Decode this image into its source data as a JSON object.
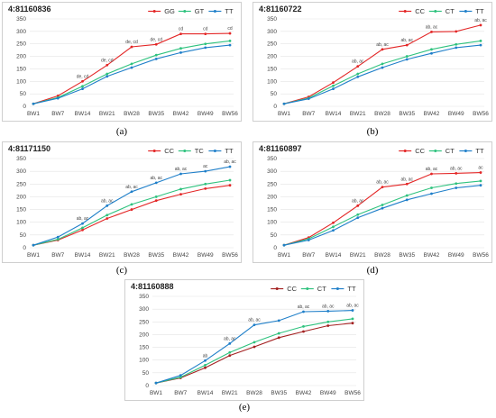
{
  "chart_data": [
    {
      "type": "line",
      "title": "4:81160836",
      "caption": "(a)",
      "categories": [
        "BW1",
        "BW7",
        "BW14",
        "BW21",
        "BW28",
        "BW35",
        "BW42",
        "BW49",
        "BW56"
      ],
      "ylim": [
        0,
        350
      ],
      "yticks": [
        0,
        50,
        100,
        150,
        200,
        250,
        300,
        350
      ],
      "grid": true,
      "legend": "top-right",
      "series": [
        {
          "name": "GG",
          "color": "#e32626",
          "values": [
            10,
            42,
            100,
            165,
            238,
            248,
            290,
            290,
            292
          ]
        },
        {
          "name": "GT",
          "color": "#2ec27e",
          "values": [
            10,
            35,
            80,
            130,
            170,
            205,
            232,
            250,
            262
          ]
        },
        {
          "name": "TT",
          "color": "#1f7fc9",
          "values": [
            10,
            32,
            70,
            120,
            155,
            190,
            215,
            235,
            245
          ]
        }
      ],
      "annotations": [
        "",
        "",
        "de, cd",
        "de, cd",
        "de, cd",
        "de, cd",
        "cd",
        "cd",
        "cd"
      ]
    },
    {
      "type": "line",
      "title": "4:81160722",
      "caption": "(b)",
      "categories": [
        "BW1",
        "BW7",
        "BW14",
        "BW21",
        "BW28",
        "BW35",
        "BW42",
        "BW49",
        "BW56"
      ],
      "ylim": [
        0,
        350
      ],
      "yticks": [
        0,
        50,
        100,
        150,
        200,
        250,
        300,
        350
      ],
      "grid": true,
      "legend": "top-right",
      "series": [
        {
          "name": "CC",
          "color": "#e32626",
          "values": [
            10,
            38,
            95,
            160,
            228,
            245,
            298,
            300,
            325
          ]
        },
        {
          "name": "CT",
          "color": "#2ec27e",
          "values": [
            10,
            33,
            82,
            130,
            170,
            200,
            228,
            248,
            262
          ]
        },
        {
          "name": "TT",
          "color": "#1f7fc9",
          "values": [
            10,
            30,
            70,
            118,
            155,
            188,
            212,
            235,
            245
          ]
        }
      ],
      "annotations": [
        "",
        "",
        "",
        "ab, ac",
        "ab, ac",
        "ab, ac",
        "ab, ac",
        "",
        "ab, ac"
      ]
    },
    {
      "type": "line",
      "title": "4:81171150",
      "caption": "(c)",
      "categories": [
        "BW1",
        "BW7",
        "BW14",
        "BW21",
        "BW28",
        "BW35",
        "BW42",
        "BW49",
        "BW56"
      ],
      "ylim": [
        0,
        350
      ],
      "yticks": [
        0,
        50,
        100,
        150,
        200,
        250,
        300,
        350
      ],
      "grid": true,
      "legend": "top-right",
      "series": [
        {
          "name": "CC",
          "color": "#e32626",
          "values": [
            10,
            30,
            70,
            115,
            150,
            185,
            210,
            232,
            245
          ]
        },
        {
          "name": "TC",
          "color": "#2ec27e",
          "values": [
            10,
            33,
            78,
            128,
            170,
            200,
            230,
            250,
            265
          ]
        },
        {
          "name": "TT",
          "color": "#1f7fc9",
          "values": [
            10,
            42,
            95,
            165,
            220,
            255,
            290,
            300,
            318
          ]
        }
      ],
      "annotations": [
        "",
        "",
        "ab, ac",
        "ab, ac",
        "ab, ac",
        "ab, ac",
        "ab, ac",
        "ac",
        "ab, ac"
      ]
    },
    {
      "type": "line",
      "title": "4:81160897",
      "caption": "(d)",
      "categories": [
        "BW1",
        "BW7",
        "BW14",
        "BW21",
        "BW28",
        "BW35",
        "BW42",
        "BW49",
        "BW56"
      ],
      "ylim": [
        0,
        350
      ],
      "yticks": [
        0,
        50,
        100,
        150,
        200,
        250,
        300,
        350
      ],
      "grid": true,
      "legend": "top-right",
      "series": [
        {
          "name": "CC",
          "color": "#e32626",
          "values": [
            10,
            40,
            98,
            165,
            238,
            250,
            290,
            292,
            295
          ]
        },
        {
          "name": "CT",
          "color": "#2ec27e",
          "values": [
            10,
            35,
            82,
            130,
            168,
            205,
            235,
            252,
            262
          ]
        },
        {
          "name": "TT",
          "color": "#1f7fc9",
          "values": [
            10,
            30,
            68,
            118,
            155,
            188,
            212,
            235,
            245
          ]
        }
      ],
      "annotations": [
        "",
        "",
        "",
        "ab, ac",
        "ab, ac",
        "ab, ac",
        "ab, ac",
        "ab, ac",
        "ac"
      ]
    },
    {
      "type": "line",
      "title": "4:81160888",
      "caption": "(e)",
      "categories": [
        "BW1",
        "BW7",
        "BW14",
        "BW21",
        "BW28",
        "BW35",
        "BW42",
        "BW49",
        "BW56"
      ],
      "ylim": [
        0,
        350
      ],
      "yticks": [
        0,
        50,
        100,
        150,
        200,
        250,
        300,
        350
      ],
      "grid": true,
      "legend": "top-right",
      "series": [
        {
          "name": "CC",
          "color": "#a32020",
          "values": [
            10,
            30,
            70,
            118,
            152,
            188,
            212,
            235,
            245
          ]
        },
        {
          "name": "CT",
          "color": "#2ec27e",
          "values": [
            10,
            33,
            80,
            130,
            170,
            205,
            232,
            250,
            262
          ]
        },
        {
          "name": "TT",
          "color": "#1f7fc9",
          "values": [
            10,
            40,
            98,
            165,
            238,
            255,
            290,
            292,
            295
          ]
        }
      ],
      "annotations": [
        "",
        "",
        "ab",
        "ab, ac",
        "ab, ac",
        "",
        "ab, ac",
        "ab, ac",
        "ab, ac"
      ]
    }
  ]
}
